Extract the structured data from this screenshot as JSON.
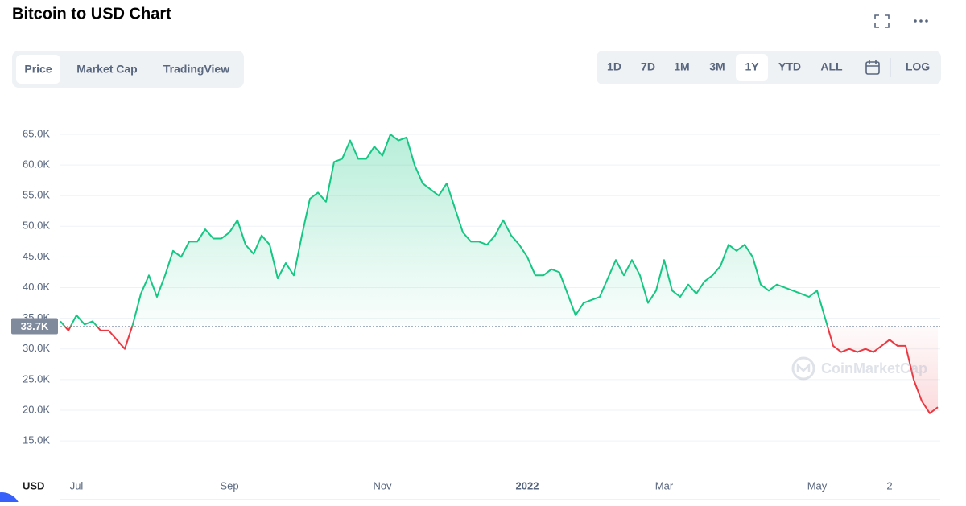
{
  "header": {
    "title": "Bitcoin to USD Chart"
  },
  "tabs": {
    "items": [
      "Price",
      "Market Cap",
      "TradingView"
    ],
    "active": 0
  },
  "ranges": {
    "items": [
      "1D",
      "7D",
      "1M",
      "3M",
      "1Y",
      "YTD",
      "ALL"
    ],
    "active": 4,
    "log": "LOG"
  },
  "chart_data": {
    "type": "line",
    "currency": "USD",
    "watermark": "CoinMarketCap",
    "color": "#16c784",
    "down_color": "#ea3943",
    "reference": {
      "value": 33700,
      "label": "33.7K"
    },
    "categories": [
      null,
      null,
      "Jul",
      null,
      null,
      null,
      null,
      null,
      null,
      null,
      null,
      null,
      null,
      null,
      null,
      null,
      null,
      null,
      null,
      null,
      null,
      "Sep",
      null,
      null,
      null,
      null,
      null,
      null,
      null,
      null,
      null,
      null,
      null,
      null,
      null,
      null,
      null,
      null,
      null,
      null,
      "Nov",
      null,
      null,
      null,
      null,
      null,
      null,
      null,
      null,
      null,
      null,
      null,
      null,
      null,
      null,
      null,
      null,
      null,
      "2022",
      null,
      null,
      null,
      null,
      null,
      null,
      null,
      null,
      null,
      null,
      null,
      null,
      null,
      null,
      null,
      null,
      "Mar",
      null,
      null,
      null,
      null,
      null,
      null,
      null,
      null,
      null,
      null,
      null,
      null,
      null,
      null,
      null,
      null,
      null,
      null,
      "May",
      null,
      null,
      null,
      null,
      null,
      null,
      null,
      null,
      "2",
      null,
      null,
      null,
      null,
      null,
      null
    ],
    "values": [
      34500,
      33000,
      35500,
      34000,
      34500,
      33000,
      33000,
      31500,
      30000,
      34000,
      39000,
      42000,
      38500,
      42000,
      46000,
      45000,
      47500,
      47500,
      49500,
      48000,
      48000,
      49000,
      51000,
      47000,
      45500,
      48500,
      47000,
      41500,
      44000,
      42000,
      48500,
      54500,
      55500,
      54000,
      60500,
      61000,
      64000,
      61000,
      61000,
      63000,
      61500,
      65000,
      64000,
      64500,
      60000,
      57000,
      56000,
      55000,
      57000,
      53000,
      49000,
      47500,
      47500,
      47000,
      48500,
      51000,
      48500,
      47000,
      45000,
      42000,
      42000,
      43000,
      42500,
      39000,
      35500,
      37500,
      38000,
      38500,
      41500,
      44500,
      42000,
      44500,
      42000,
      37500,
      39500,
      44500,
      39500,
      38500,
      40500,
      39000,
      41000,
      42000,
      43500,
      47000,
      46000,
      47000,
      45000,
      40500,
      39500,
      40500,
      40000,
      39500,
      39000,
      38500,
      39500,
      35000,
      30500,
      29500,
      30000,
      29500,
      30000,
      29500,
      30500,
      31500,
      30500,
      30500,
      25000,
      21500,
      19500,
      20500
    ],
    "ylim": [
      9500,
      69850
    ],
    "yticks": [
      {
        "value": 15000,
        "label": "15.0K"
      },
      {
        "value": 20000,
        "label": "20.0K"
      },
      {
        "value": 25000,
        "label": "25.0K"
      },
      {
        "value": 30000,
        "label": "30.0K"
      },
      {
        "value": 35000,
        "label": "35.0K"
      },
      {
        "value": 40000,
        "label": "40.0K"
      },
      {
        "value": 45000,
        "label": "45.0K"
      },
      {
        "value": 50000,
        "label": "50.0K"
      },
      {
        "value": 55000,
        "label": "55.0K"
      },
      {
        "value": 60000,
        "label": "60.0K"
      },
      {
        "value": 65000,
        "label": "65.0K"
      }
    ],
    "grid": true
  }
}
